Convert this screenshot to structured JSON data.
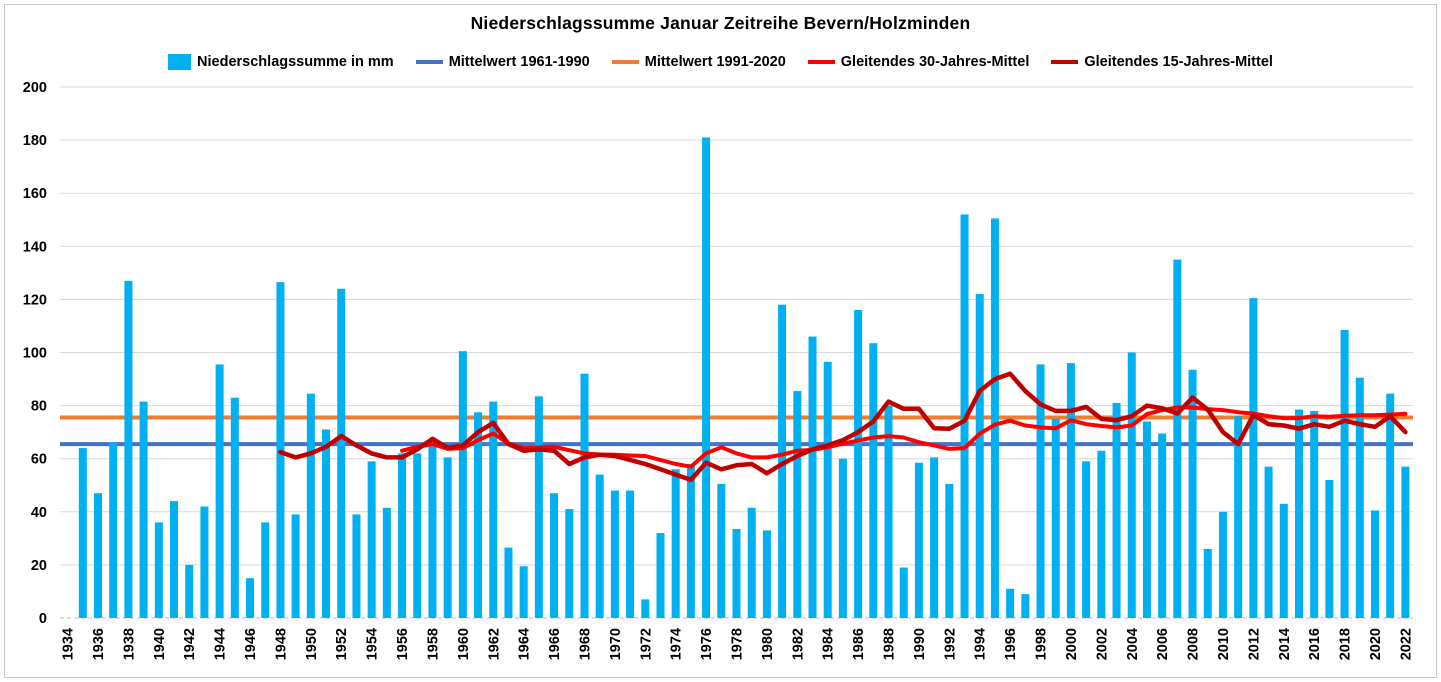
{
  "title": "Niederschlagssumme Januar Zeitreihe Bevern/Holzminden",
  "legend": {
    "bar_label": "Niederschlagssumme in mm",
    "mean6190_label": "Mittelwert 1961-1990",
    "mean9120_label": "Mittelwert 1991-2020",
    "mov30_label": "Gleitendes 30-Jahres-Mittel",
    "mov15_label": "Gleitendes 15-Jahres-Mittel"
  },
  "colors": {
    "bar": "#00B0F0",
    "mean6190": "#4472C4",
    "mean9120": "#ED7D31",
    "mov30": "#FF0000",
    "mov15": "#C00000",
    "gridline": "#D9D9D9",
    "baseline": "#BFBFBF",
    "text": "#000000"
  },
  "chart_data": {
    "type": "bar",
    "title": "Niederschlagssumme Januar Zeitreihe Bevern/Holzminden",
    "xlabel": "",
    "ylabel": "",
    "x_start": 1934,
    "x_end": 2022,
    "ylim": [
      0,
      200
    ],
    "y_step": 20,
    "grid": true,
    "legend_position": "top",
    "y_tick_labels": [
      "0",
      "20",
      "40",
      "60",
      "80",
      "100",
      "120",
      "140",
      "160",
      "180",
      "200"
    ],
    "x_tick_labels": [
      "1934",
      "1936",
      "1938",
      "1940",
      "1942",
      "1944",
      "1946",
      "1948",
      "1950",
      "1952",
      "1954",
      "1956",
      "1958",
      "1960",
      "1962",
      "1964",
      "1966",
      "1968",
      "1970",
      "1972",
      "1974",
      "1976",
      "1978",
      "1980",
      "1982",
      "1984",
      "1986",
      "1988",
      "1990",
      "1992",
      "1994",
      "1996",
      "1998",
      "2000",
      "2002",
      "2004",
      "2006",
      "2008",
      "2010",
      "2012",
      "2014",
      "2016",
      "2018",
      "2020",
      "2022"
    ],
    "bar_series": {
      "name": "Niederschlagssumme in mm",
      "color": "#00B0F0",
      "start_year": 1934,
      "values": [
        null,
        64,
        47,
        66,
        127,
        81.5,
        36,
        44,
        20,
        42,
        95.5,
        83,
        15,
        36,
        126.5,
        39,
        84.5,
        71,
        124,
        39,
        59,
        41.5,
        62,
        62,
        67,
        60.5,
        100.5,
        77.5,
        81.5,
        26.5,
        19.5,
        83.5,
        47,
        41,
        92,
        54,
        48,
        48,
        7,
        32,
        56,
        58,
        181,
        50.5,
        33.5,
        41.5,
        33,
        118,
        85.5,
        106,
        96.5,
        60,
        116,
        103.5,
        80,
        19,
        58.5,
        60.5,
        50.5,
        152,
        122,
        150.5,
        11,
        9,
        95.5,
        75,
        96,
        59,
        63,
        81,
        100,
        74,
        69.5,
        135,
        93.5,
        26,
        40,
        76,
        120.5,
        57,
        43,
        78.5,
        78,
        52,
        108.5,
        90.5,
        40.5,
        84.5,
        57
      ]
    },
    "const_lines": [
      {
        "name": "Mittelwert 1961-1990",
        "color": "#4472C4",
        "value": 65.5
      },
      {
        "name": "Mittelwert 1991-2020",
        "color": "#ED7D31",
        "value": 75.5
      }
    ],
    "moving_lines": [
      {
        "name": "Gleitendes 30-Jahres-Mittel",
        "color": "#FF0000",
        "start_year": 1956,
        "values": [
          63,
          64.5,
          65.5,
          63.7,
          64,
          67,
          69.5,
          65.7,
          64,
          64.2,
          64.5,
          63.2,
          62,
          61.6,
          61.5,
          61.2,
          61,
          59.5,
          58,
          57,
          62,
          64.3,
          62,
          60.5,
          60.5,
          61.5,
          63,
          63.3,
          64.3,
          65.7,
          66.8,
          68,
          68.5,
          68,
          66.2,
          65,
          63.7,
          64,
          69.4,
          72.8,
          74.3,
          72.5,
          71.8,
          71.4,
          74.5,
          73,
          72.3,
          71.8,
          72.5,
          76.8,
          78.3,
          79.3,
          79.3,
          78.7,
          78.3,
          77.5,
          77,
          76,
          75.3,
          75.3,
          76,
          75.8,
          76.2,
          76.4,
          76.4,
          76.6,
          76.9
        ]
      },
      {
        "name": "Gleitendes 15-Jahres-Mittel",
        "color": "#C00000",
        "start_year": 1948,
        "values": [
          62.5,
          60.5,
          62,
          64.5,
          68.5,
          65,
          62,
          60.5,
          60.5,
          63.5,
          67.5,
          64,
          65,
          70,
          73.5,
          65.5,
          63,
          63.5,
          63,
          58,
          60.5,
          61.5,
          61,
          59.5,
          58,
          56,
          54,
          52,
          58.5,
          56,
          57.5,
          58,
          54.5,
          58,
          61,
          63.5,
          65,
          67,
          70,
          74,
          81.5,
          78.8,
          78.8,
          71.5,
          71.3,
          74.3,
          85.5,
          90,
          92,
          85.5,
          80.5,
          78,
          78,
          79.5,
          75,
          74.5,
          76,
          80,
          79,
          77,
          83,
          78.5,
          70,
          65.5,
          76.5,
          73,
          72.5,
          71.3,
          73,
          72,
          74.3,
          73,
          72,
          76,
          70
        ]
      }
    ]
  }
}
